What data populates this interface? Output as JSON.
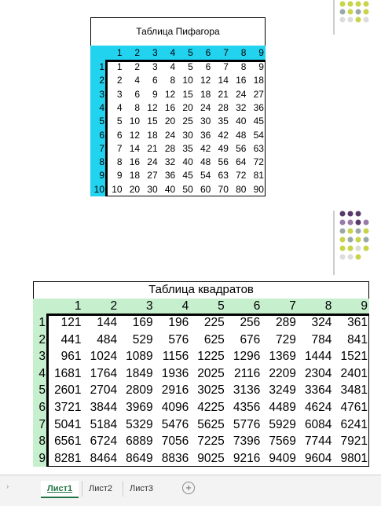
{
  "tables": [
    {
      "title": "Таблица Пифагора",
      "columns": [
        1,
        2,
        3,
        4,
        5,
        6,
        7,
        8,
        9
      ],
      "rows": [
        {
          "header": 1,
          "cells": [
            1,
            2,
            3,
            4,
            5,
            6,
            7,
            8,
            9
          ]
        },
        {
          "header": 2,
          "cells": [
            2,
            4,
            6,
            8,
            10,
            12,
            14,
            16,
            18
          ]
        },
        {
          "header": 3,
          "cells": [
            3,
            6,
            9,
            12,
            15,
            18,
            21,
            24,
            27
          ]
        },
        {
          "header": 4,
          "cells": [
            4,
            8,
            12,
            16,
            20,
            24,
            28,
            32,
            36
          ]
        },
        {
          "header": 5,
          "cells": [
            5,
            10,
            15,
            20,
            25,
            30,
            35,
            40,
            45
          ]
        },
        {
          "header": 6,
          "cells": [
            6,
            12,
            18,
            24,
            30,
            36,
            42,
            48,
            54
          ]
        },
        {
          "header": 7,
          "cells": [
            7,
            14,
            21,
            28,
            35,
            42,
            49,
            56,
            63
          ]
        },
        {
          "header": 8,
          "cells": [
            8,
            16,
            24,
            32,
            40,
            48,
            56,
            64,
            72
          ]
        },
        {
          "header": 9,
          "cells": [
            9,
            18,
            27,
            36,
            45,
            54,
            63,
            72,
            81
          ]
        },
        {
          "header": 10,
          "cells": [
            10,
            20,
            30,
            40,
            50,
            60,
            70,
            80,
            90
          ]
        }
      ]
    },
    {
      "title": "Таблица квадратов",
      "columns": [
        1,
        2,
        3,
        4,
        5,
        6,
        7,
        8,
        9
      ],
      "rows": [
        {
          "header": 1,
          "cells": [
            121,
            144,
            169,
            196,
            225,
            256,
            289,
            324,
            361
          ]
        },
        {
          "header": 2,
          "cells": [
            441,
            484,
            529,
            576,
            625,
            676,
            729,
            784,
            841
          ]
        },
        {
          "header": 3,
          "cells": [
            961,
            1024,
            1089,
            1156,
            1225,
            1296,
            1369,
            1444,
            1521
          ]
        },
        {
          "header": 4,
          "cells": [
            1681,
            1764,
            1849,
            1936,
            2025,
            2116,
            2209,
            2304,
            2401
          ]
        },
        {
          "header": 5,
          "cells": [
            2601,
            2704,
            2809,
            2916,
            3025,
            3136,
            3249,
            3364,
            3481
          ]
        },
        {
          "header": 6,
          "cells": [
            3721,
            3844,
            3969,
            4096,
            4225,
            4356,
            4489,
            4624,
            4761
          ]
        },
        {
          "header": 7,
          "cells": [
            5041,
            5184,
            5329,
            5476,
            5625,
            5776,
            5929,
            6084,
            6241
          ]
        },
        {
          "header": 8,
          "cells": [
            6561,
            6724,
            6889,
            7056,
            7225,
            7396,
            7569,
            7744,
            7921
          ]
        },
        {
          "header": 9,
          "cells": [
            8281,
            8464,
            8649,
            8836,
            9025,
            9216,
            9409,
            9604,
            9801
          ]
        }
      ]
    }
  ],
  "sheet_tabs": [
    "Лист1",
    "Лист2",
    "Лист3"
  ]
}
